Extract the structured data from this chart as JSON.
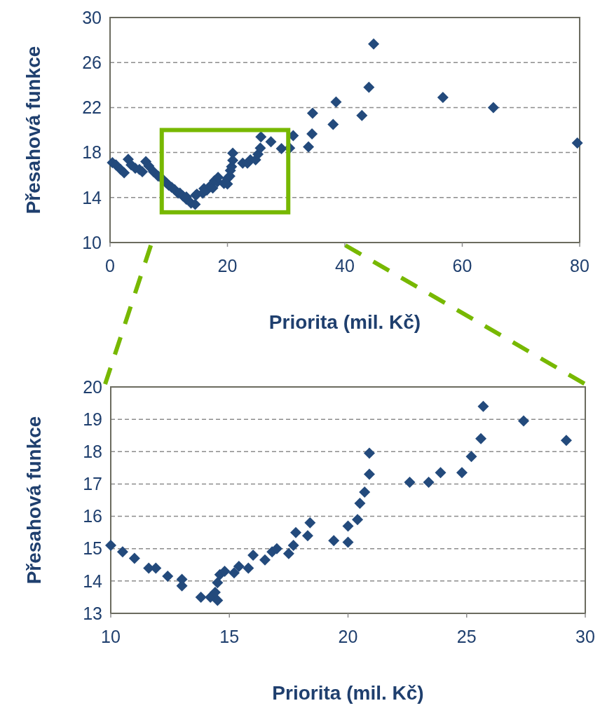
{
  "chart_data": [
    {
      "type": "scatter",
      "xlabel": "Priorita (mil. Kč)",
      "ylabel": "Přesahová funkce",
      "xlim": [
        0,
        80
      ],
      "ylim": [
        10,
        30
      ],
      "xticks": [
        0,
        20,
        40,
        60,
        80
      ],
      "yticks": [
        10,
        14,
        18,
        22,
        26,
        30
      ],
      "grid": "y",
      "marker": "diamond",
      "series": [
        {
          "color": "#234a7c",
          "x": [
            0.4,
            1.0,
            1.8,
            2.4,
            3.1,
            3.6,
            4.3,
            5.0,
            5.5,
            6.1,
            6.6,
            7.4,
            8.2,
            9.0,
            9.6,
            10.0,
            10.5,
            11.0,
            11.6,
            11.9,
            12.4,
            13.0,
            13.0,
            13.8,
            14.5,
            14.6,
            14.8,
            15.8,
            16.0,
            16.5,
            17.0,
            17.5,
            17.8,
            18.3,
            18.4,
            19.4,
            20.0,
            20.0,
            20.4,
            20.5,
            20.7,
            20.9,
            20.9,
            22.6,
            23.4,
            23.9,
            24.8,
            25.2,
            25.6,
            25.7,
            27.4,
            29.2,
            30.6,
            31.2,
            33.8,
            34.4,
            34.5,
            38.0,
            38.5,
            42.9,
            44.1,
            44.9,
            56.7,
            65.3,
            79.6
          ],
          "values": [
            17.1,
            16.9,
            16.5,
            16.2,
            17.4,
            16.9,
            16.6,
            16.5,
            16.3,
            17.2,
            16.8,
            16.3,
            15.9,
            15.6,
            15.3,
            15.1,
            14.9,
            14.7,
            14.4,
            14.4,
            14.15,
            13.85,
            14.05,
            13.5,
            13.4,
            14.2,
            14.3,
            14.4,
            14.8,
            14.65,
            15.0,
            14.85,
            15.5,
            15.4,
            15.8,
            15.25,
            15.2,
            15.7,
            15.9,
            16.4,
            16.75,
            17.3,
            17.95,
            17.05,
            17.05,
            17.35,
            17.35,
            17.85,
            18.4,
            19.4,
            18.95,
            18.35,
            18.4,
            19.5,
            18.5,
            19.65,
            21.5,
            20.5,
            22.5,
            21.3,
            23.8,
            27.65,
            22.9,
            22.0,
            18.85
          ]
        }
      ]
    },
    {
      "type": "scatter",
      "xlabel": "Priorita (mil. Kč)",
      "ylabel": "Přesahová funkce",
      "xlim": [
        10,
        30
      ],
      "ylim": [
        13,
        20
      ],
      "xticks": [
        10,
        15,
        20,
        25,
        30
      ],
      "yticks": [
        13,
        14,
        15,
        16,
        17,
        18,
        19,
        20
      ],
      "grid": "y",
      "marker": "diamond",
      "series": [
        {
          "color": "#234a7c",
          "x": [
            10.0,
            10.5,
            11.0,
            11.6,
            11.9,
            12.4,
            13.0,
            13.0,
            13.8,
            14.2,
            14.5,
            14.4,
            14.5,
            14.6,
            14.8,
            15.2,
            15.4,
            15.8,
            16.0,
            16.5,
            16.8,
            17.0,
            17.5,
            17.7,
            17.8,
            18.3,
            18.4,
            19.4,
            20.0,
            20.0,
            20.4,
            20.5,
            20.7,
            20.9,
            20.9,
            22.6,
            23.4,
            23.9,
            24.8,
            25.2,
            25.6,
            25.7,
            27.4,
            29.2
          ],
          "values": [
            15.1,
            14.9,
            14.7,
            14.4,
            14.4,
            14.15,
            13.85,
            14.05,
            13.5,
            13.5,
            13.4,
            13.65,
            13.95,
            14.2,
            14.3,
            14.25,
            14.45,
            14.4,
            14.8,
            14.65,
            14.9,
            15.0,
            14.85,
            15.1,
            15.5,
            15.4,
            15.8,
            15.25,
            15.2,
            15.7,
            15.9,
            16.4,
            16.75,
            17.3,
            17.95,
            17.05,
            17.05,
            17.35,
            17.35,
            17.85,
            18.4,
            19.4,
            18.95,
            18.35
          ]
        }
      ]
    }
  ]
}
